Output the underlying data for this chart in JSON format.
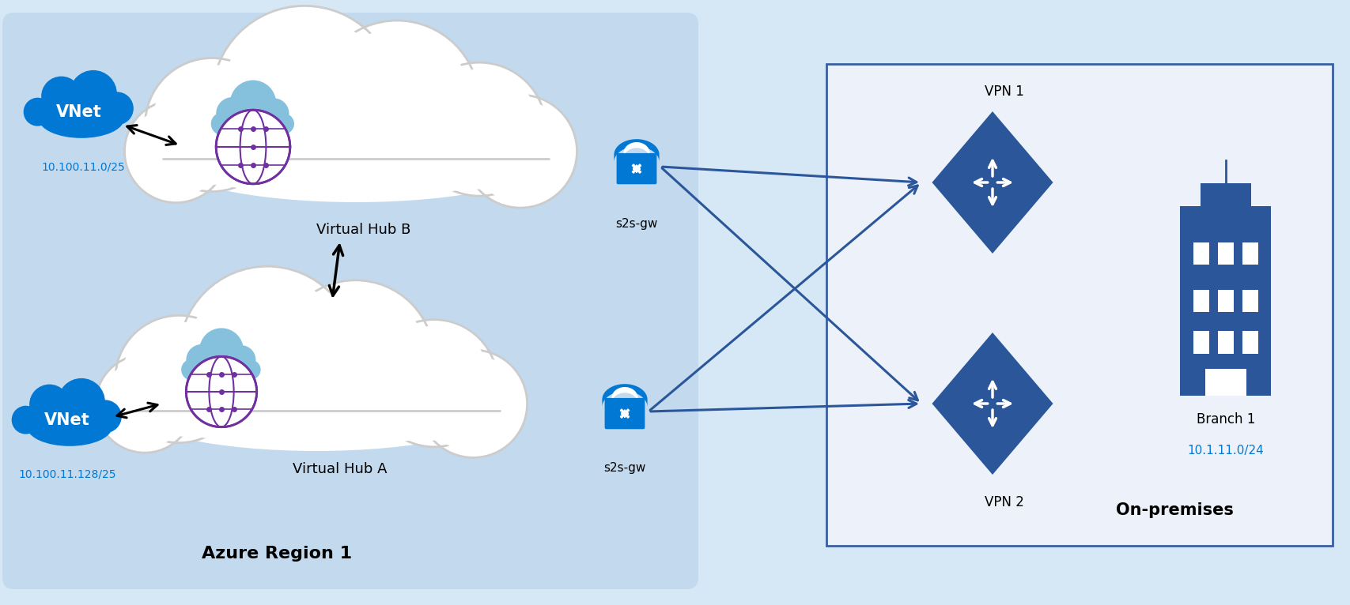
{
  "fig_width": 17.08,
  "fig_height": 7.66,
  "bg_color": "#D6E8F5",
  "azure_region_bg": "#C2D9EE",
  "onprem_bg": "#EDF2FA",
  "onprem_border": "#3A5FA0",
  "blue_azure": "#0078D4",
  "arrow_blue": "#2B579A",
  "vnet_color": "#0078D4",
  "lock_color": "#0078D4",
  "vpn_color": "#2B579A",
  "building_color": "#2B579A",
  "purple_globe": "#7030A0",
  "light_blue_cloud": "#85C1DC",
  "labels": {
    "vnet_top": "VNet",
    "vnet_top_ip": "10.100.11.0/25",
    "vnet_bot": "VNet",
    "vnet_bot_ip": "10.100.11.128/25",
    "hub_b": "Virtual Hub B",
    "hub_a": "Virtual Hub A",
    "gw_b": "s2s-gw",
    "gw_a": "s2s-gw",
    "vpn1": "VPN 1",
    "vpn2": "VPN 2",
    "branch": "Branch 1",
    "branch_ip": "10.1.11.0/24",
    "onprem": "On-premises",
    "azure_region": "Azure Region 1"
  }
}
